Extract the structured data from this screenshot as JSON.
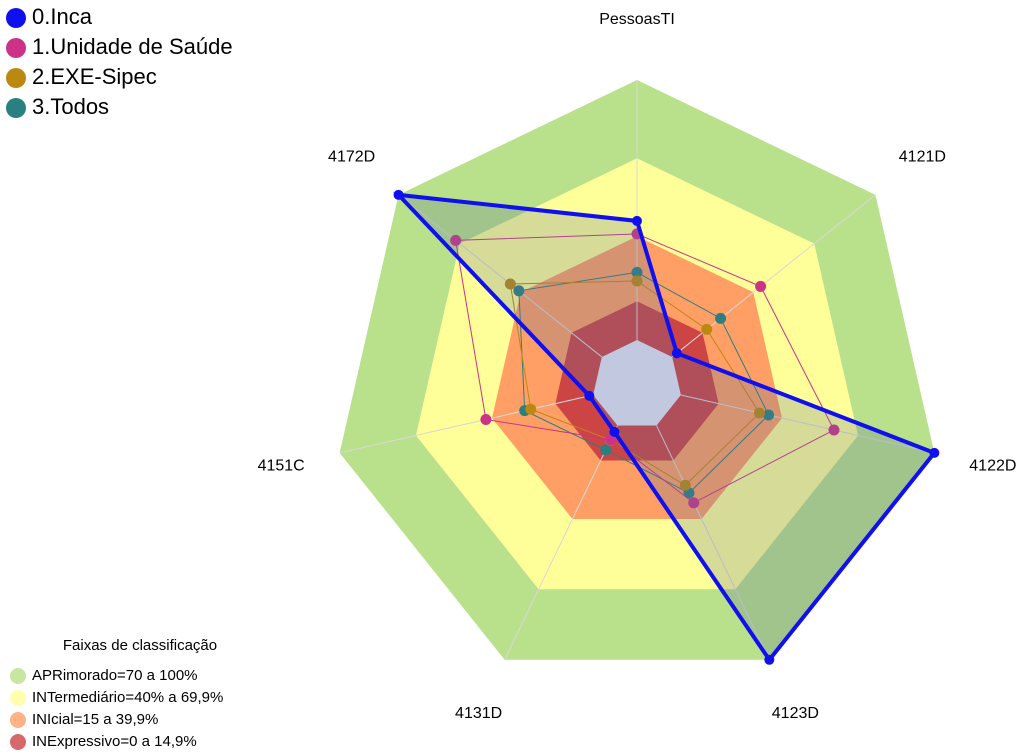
{
  "chart_data": {
    "type": "radar",
    "title": "Faixas de classificação",
    "categories": [
      "PessoasTI",
      "4121D",
      "4122D",
      "4123D",
      "4131D",
      "4151C",
      "4172D"
    ],
    "rlim": [
      0,
      100
    ],
    "bands": [
      {
        "label": "APRimorado=70 a 100%",
        "color": "#b9e08a",
        "from": 70,
        "to": 100
      },
      {
        "label": "INTermediário=40% a 69,9%",
        "color": "#ffff99",
        "from": 40,
        "to": 69.9
      },
      {
        "label": "INIcial=15 a 39,9%",
        "color": "#ff9f66",
        "from": 15,
        "to": 39.9
      },
      {
        "label": "INExpressivo=0 a 14,9%",
        "color": "#cc4444",
        "from": 0,
        "to": 14.9
      }
    ],
    "series": [
      {
        "name": "0.Inca",
        "color": "#1010ee",
        "values": [
          45.8,
          2.3,
          100,
          100,
          2.7,
          1.5,
          100
        ]
      },
      {
        "name": "1.Unidade de Saúde",
        "color": "#cc3388",
        "values": [
          40.8,
          43.5,
          60.4,
          33,
          6,
          42.3,
          71.9
        ]
      },
      {
        "name": "2.EXE-Sipec",
        "color": "#bb8811",
        "values": [
          22.7,
          17,
          31,
          25.5,
          6.2,
          24.6,
          45
        ]
      },
      {
        "name": "3.Todos",
        "color": "#2a8080",
        "values": [
          26,
          23.8,
          34.6,
          28.8,
          10.4,
          27,
          40.8
        ]
      }
    ]
  }
}
